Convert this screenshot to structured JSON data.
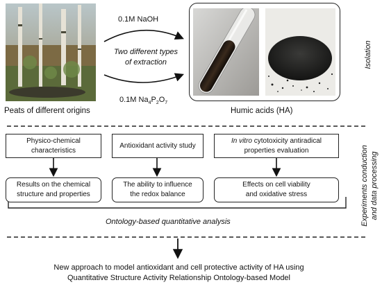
{
  "top": {
    "peat_label": "Peats of different origins",
    "naoh_label": "0.1M NaOH",
    "extraction_line1": "Two different types",
    "extraction_line2": "of extraction",
    "pyro_main": "0.1M Na",
    "pyro_sub1": "4",
    "pyro_mid": "P",
    "pyro_sub2": "2",
    "pyro_end": "O",
    "pyro_sub3": "7",
    "ha_label": "Humic acids (HA)",
    "isolation_label": "Isolation"
  },
  "middle": {
    "side_label_line1": "Experiments conduction",
    "side_label_line2": "and data processing",
    "top_boxes": [
      {
        "line1": "Physico-chemical",
        "line2": "characteristics"
      },
      {
        "line1": "Antioxidant activity study",
        "line2": ""
      },
      {
        "line1_italic": "In vitro",
        "line1_rest": " cytotoxicity antiradical",
        "line2": "properties evaluation"
      }
    ],
    "bottom_boxes": [
      {
        "line1": "Results on the chemical",
        "line2": "structure and properties"
      },
      {
        "line1": "The ability to influence",
        "line2": "the redox balance"
      },
      {
        "line1": "Effects on cell viability",
        "line2": "and oxidative stress"
      }
    ],
    "analysis_label": "Ontology-based quantitative analysis"
  },
  "bottom": {
    "line1": "New approach to model antioxidant and cell protective activity of HA using",
    "line2": "Quantitative Structure Activity Relationship Ontology-based Model"
  }
}
